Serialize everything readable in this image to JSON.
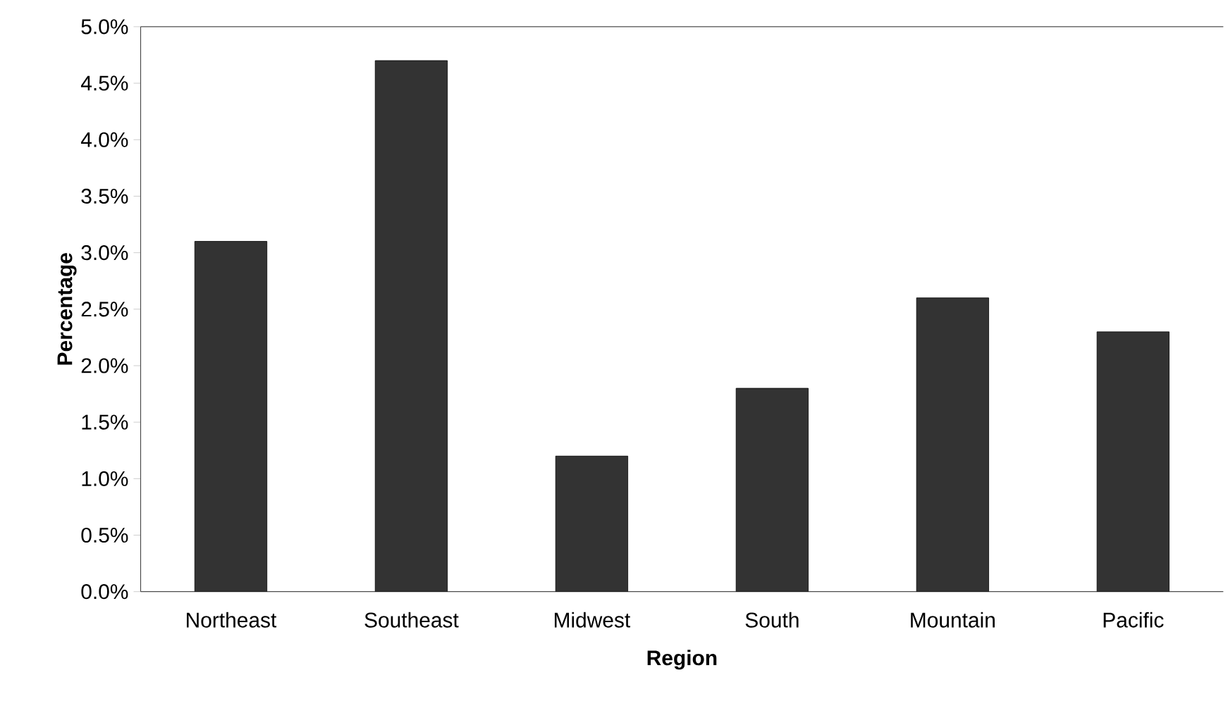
{
  "chart_data": {
    "type": "bar",
    "xlabel": "Region",
    "ylabel": "Percentage",
    "categories": [
      "Northeast",
      "Southeast",
      "Midwest",
      "South",
      "Mountain",
      "Pacific"
    ],
    "values": [
      3.1,
      4.7,
      1.2,
      1.8,
      2.6,
      2.3
    ],
    "color": "#333333",
    "ylim": [
      0,
      5
    ],
    "yticks": [
      {
        "value": 0,
        "label": "0.0%"
      },
      {
        "value": 0.5,
        "label": "0.5%"
      },
      {
        "value": 1,
        "label": "1.0%"
      },
      {
        "value": 1.5,
        "label": "1.5%"
      },
      {
        "value": 2,
        "label": "2.0%"
      },
      {
        "value": 2.5,
        "label": "2.5%"
      },
      {
        "value": 3,
        "label": "3.0%"
      },
      {
        "value": 3.5,
        "label": "3.5%"
      },
      {
        "value": 4,
        "label": "4.0%"
      },
      {
        "value": 4.5,
        "label": "4.5%"
      },
      {
        "value": 5,
        "label": "5.0%"
      }
    ]
  }
}
